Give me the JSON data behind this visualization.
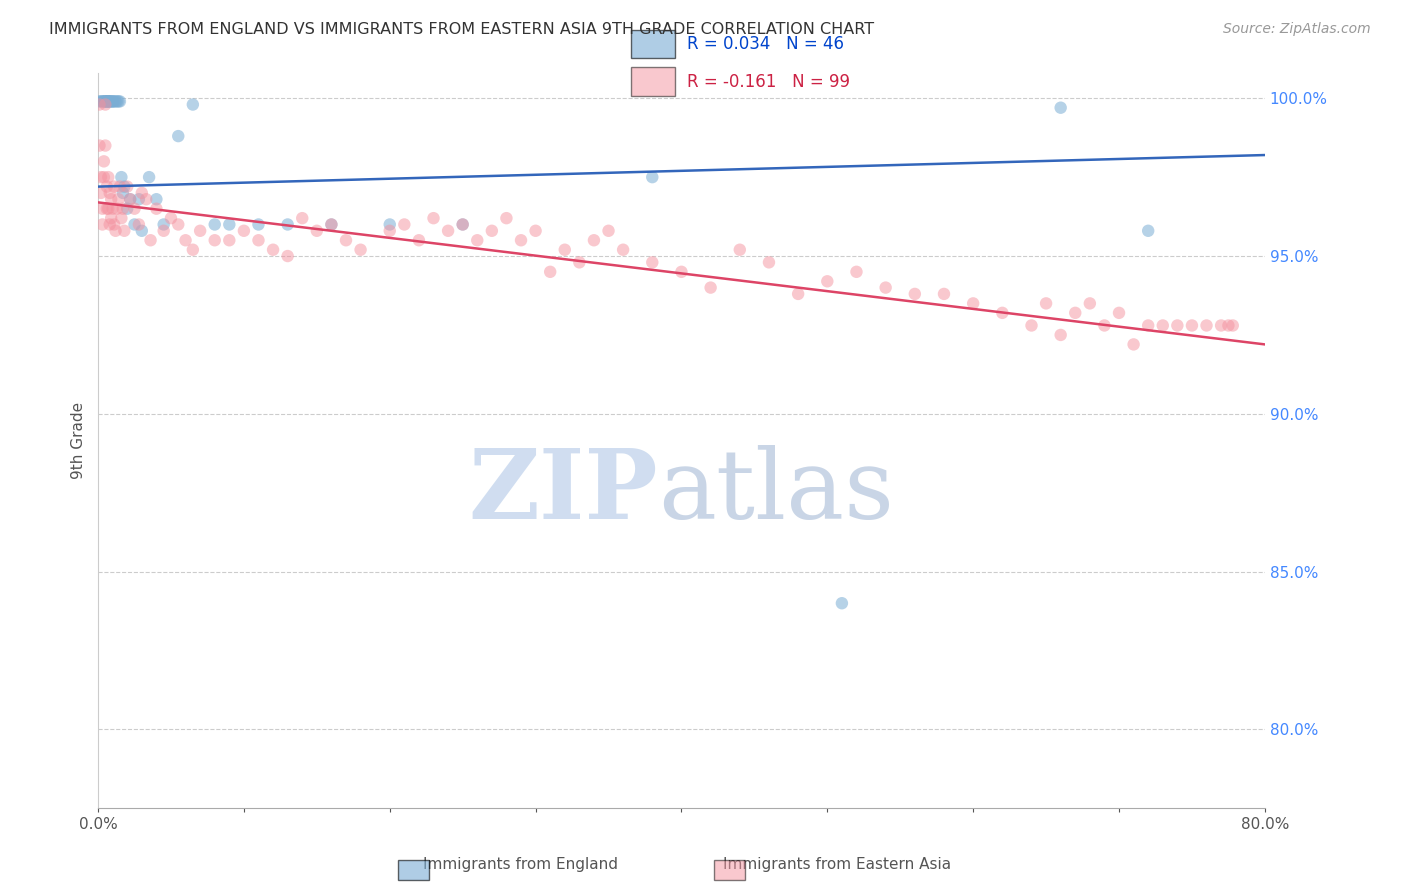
{
  "title": "IMMIGRANTS FROM ENGLAND VS IMMIGRANTS FROM EASTERN ASIA 9TH GRADE CORRELATION CHART",
  "source": "Source: ZipAtlas.com",
  "ylabel": "9th Grade",
  "x_min": 0.0,
  "x_max": 0.8,
  "y_min": 0.775,
  "y_max": 1.008,
  "y_ticks": [
    0.8,
    0.85,
    0.9,
    0.95,
    1.0
  ],
  "y_tick_labels": [
    "80.0%",
    "85.0%",
    "90.0%",
    "95.0%",
    "100.0%"
  ],
  "x_ticks": [
    0.0,
    0.1,
    0.2,
    0.3,
    0.4,
    0.5,
    0.6,
    0.7,
    0.8
  ],
  "x_tick_labels": [
    "0.0%",
    "",
    "",
    "",
    "",
    "",
    "",
    "",
    "80.0%"
  ],
  "england_color": "#7aadd4",
  "eastern_asia_color": "#f4929f",
  "england_R": 0.034,
  "england_N": 46,
  "eastern_asia_R": -0.161,
  "eastern_asia_N": 99,
  "england_line_color": "#3366bb",
  "eastern_asia_line_color": "#dd4466",
  "england_line_y0": 0.972,
  "england_line_y1": 0.982,
  "eastern_asia_line_y0": 0.967,
  "eastern_asia_line_y1": 0.922,
  "england_x": [
    0.001,
    0.002,
    0.003,
    0.004,
    0.004,
    0.005,
    0.005,
    0.006,
    0.006,
    0.007,
    0.007,
    0.007,
    0.008,
    0.008,
    0.009,
    0.01,
    0.01,
    0.011,
    0.012,
    0.013,
    0.014,
    0.015,
    0.016,
    0.017,
    0.018,
    0.02,
    0.022,
    0.025,
    0.028,
    0.03,
    0.035,
    0.04,
    0.045,
    0.055,
    0.065,
    0.08,
    0.09,
    0.11,
    0.13,
    0.16,
    0.2,
    0.25,
    0.38,
    0.51,
    0.66,
    0.72
  ],
  "england_y": [
    0.999,
    0.999,
    0.999,
    0.999,
    0.999,
    0.999,
    0.999,
    0.999,
    0.999,
    0.999,
    0.999,
    0.999,
    0.999,
    0.999,
    0.999,
    0.999,
    0.999,
    0.999,
    0.999,
    0.999,
    0.999,
    0.999,
    0.975,
    0.97,
    0.972,
    0.965,
    0.968,
    0.96,
    0.968,
    0.958,
    0.975,
    0.968,
    0.96,
    0.988,
    0.998,
    0.96,
    0.96,
    0.96,
    0.96,
    0.96,
    0.96,
    0.96,
    0.975,
    0.84,
    0.997,
    0.958
  ],
  "eastern_asia_x": [
    0.001,
    0.001,
    0.002,
    0.002,
    0.003,
    0.003,
    0.004,
    0.004,
    0.005,
    0.005,
    0.006,
    0.006,
    0.007,
    0.007,
    0.008,
    0.008,
    0.009,
    0.009,
    0.01,
    0.011,
    0.011,
    0.012,
    0.013,
    0.014,
    0.015,
    0.016,
    0.017,
    0.018,
    0.02,
    0.022,
    0.025,
    0.028,
    0.03,
    0.033,
    0.036,
    0.04,
    0.045,
    0.05,
    0.055,
    0.06,
    0.065,
    0.07,
    0.08,
    0.09,
    0.1,
    0.11,
    0.12,
    0.13,
    0.14,
    0.15,
    0.16,
    0.17,
    0.18,
    0.2,
    0.21,
    0.22,
    0.23,
    0.24,
    0.25,
    0.26,
    0.27,
    0.28,
    0.29,
    0.3,
    0.31,
    0.32,
    0.33,
    0.34,
    0.35,
    0.36,
    0.38,
    0.4,
    0.42,
    0.44,
    0.46,
    0.48,
    0.5,
    0.52,
    0.54,
    0.56,
    0.58,
    0.6,
    0.62,
    0.64,
    0.65,
    0.66,
    0.67,
    0.68,
    0.69,
    0.7,
    0.71,
    0.72,
    0.73,
    0.74,
    0.75,
    0.76,
    0.77,
    0.775,
    0.778
  ],
  "eastern_asia_y": [
    0.985,
    0.998,
    0.97,
    0.975,
    0.96,
    0.965,
    0.98,
    0.975,
    0.985,
    0.998,
    0.972,
    0.965,
    0.965,
    0.975,
    0.96,
    0.97,
    0.968,
    0.962,
    0.965,
    0.972,
    0.96,
    0.958,
    0.965,
    0.968,
    0.972,
    0.962,
    0.965,
    0.958,
    0.972,
    0.968,
    0.965,
    0.96,
    0.97,
    0.968,
    0.955,
    0.965,
    0.958,
    0.962,
    0.96,
    0.955,
    0.952,
    0.958,
    0.955,
    0.955,
    0.958,
    0.955,
    0.952,
    0.95,
    0.962,
    0.958,
    0.96,
    0.955,
    0.952,
    0.958,
    0.96,
    0.955,
    0.962,
    0.958,
    0.96,
    0.955,
    0.958,
    0.962,
    0.955,
    0.958,
    0.945,
    0.952,
    0.948,
    0.955,
    0.958,
    0.952,
    0.948,
    0.945,
    0.94,
    0.952,
    0.948,
    0.938,
    0.942,
    0.945,
    0.94,
    0.938,
    0.938,
    0.935,
    0.932,
    0.928,
    0.935,
    0.925,
    0.932,
    0.935,
    0.928,
    0.932,
    0.922,
    0.928,
    0.928,
    0.928,
    0.928,
    0.928,
    0.928,
    0.928,
    0.928
  ]
}
